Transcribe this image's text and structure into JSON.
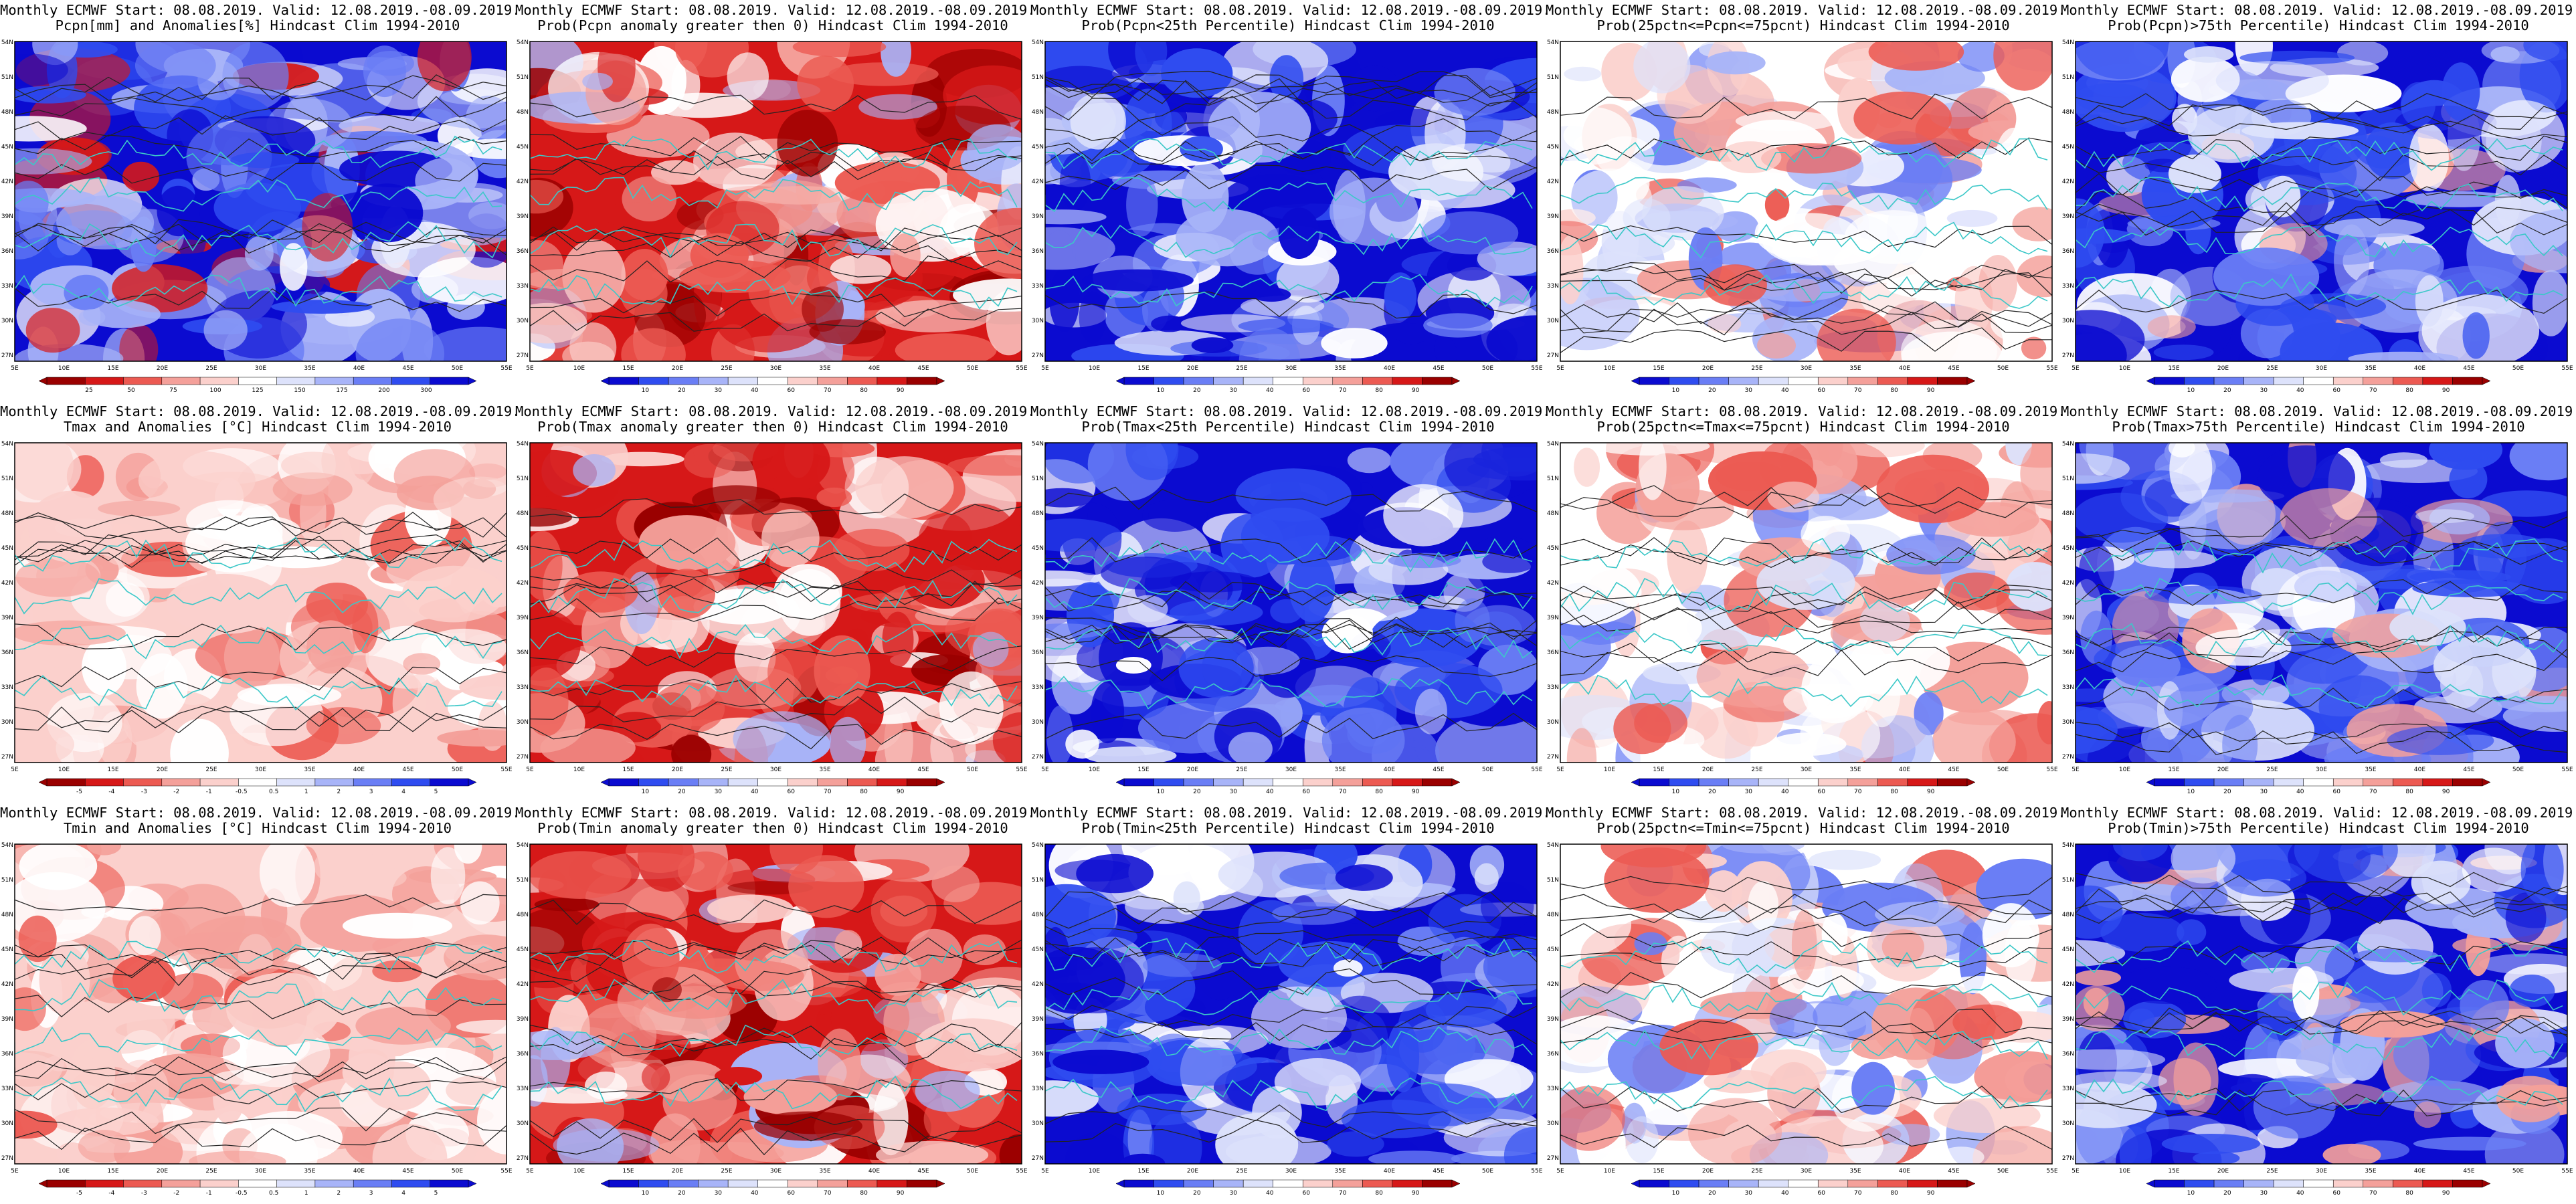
{
  "title_line1": "Monthly ECMWF Start: 08.08.2019. Valid: 12.08.2019.-08.09.2019.",
  "panels": [
    {
      "t2": "Pcpn[mm] and Anomalies[%] Hindcast Clim 1994-2010",
      "scheme": "anom",
      "ticks": [
        "25",
        "50",
        "75",
        "100",
        "125",
        "150",
        "175",
        "200",
        "300"
      ]
    },
    {
      "t2": "Prob(Pcpn anomaly greater then 0) Hindcast Clim 1994-2010",
      "scheme": "prob",
      "ticks": [
        "10",
        "20",
        "30",
        "40",
        "60",
        "70",
        "80",
        "90"
      ]
    },
    {
      "t2": "Prob(Pcpn<25th Percentile) Hindcast Clim 1994-2010",
      "scheme": "prob",
      "ticks": [
        "10",
        "20",
        "30",
        "40",
        "60",
        "70",
        "80",
        "90"
      ]
    },
    {
      "t2": "Prob(25pctn<=Pcpn<=75pcnt) Hindcast Clim 1994-2010",
      "scheme": "prob",
      "ticks": [
        "10",
        "20",
        "30",
        "40",
        "60",
        "70",
        "80",
        "90"
      ]
    },
    {
      "t2": "Prob(Pcpn)>75th Percentile) Hindcast Clim 1994-2010",
      "scheme": "prob",
      "ticks": [
        "10",
        "20",
        "30",
        "40",
        "60",
        "70",
        "80",
        "90"
      ]
    },
    {
      "t2": "Tmax and Anomalies [°C] Hindcast Clim 1994-2010",
      "scheme": "anom",
      "ticks": [
        "-5",
        "-4",
        "-3",
        "-2",
        "-1",
        "-0.5",
        "0.5",
        "1",
        "2",
        "3",
        "4",
        "5"
      ]
    },
    {
      "t2": "Prob(Tmax anomaly greater then 0) Hindcast Clim 1994-2010",
      "scheme": "prob",
      "ticks": [
        "10",
        "20",
        "30",
        "40",
        "60",
        "70",
        "80",
        "90"
      ]
    },
    {
      "t2": "Prob(Tmax<25th Percentile) Hindcast Clim 1994-2010",
      "scheme": "prob",
      "ticks": [
        "10",
        "20",
        "30",
        "40",
        "60",
        "70",
        "80",
        "90"
      ]
    },
    {
      "t2": "Prob(25pctn<=Tmax<=75pcnt) Hindcast Clim 1994-2010",
      "scheme": "prob",
      "ticks": [
        "10",
        "20",
        "30",
        "40",
        "60",
        "70",
        "80",
        "90"
      ]
    },
    {
      "t2": "Prob(Tmax>75th Percentile) Hindcast Clim 1994-2010",
      "scheme": "prob",
      "ticks": [
        "10",
        "20",
        "30",
        "40",
        "60",
        "70",
        "80",
        "90"
      ]
    },
    {
      "t2": "Tmin and Anomalies [°C] Hindcast Clim 1994-2010",
      "scheme": "anom",
      "ticks": [
        "-5",
        "-4",
        "-3",
        "-2",
        "-1",
        "-0.5",
        "0.5",
        "1",
        "2",
        "3",
        "4",
        "5"
      ]
    },
    {
      "t2": "Prob(Tmin anomaly greater then 0) Hindcast Clim 1994-2010",
      "scheme": "prob",
      "ticks": [
        "10",
        "20",
        "30",
        "40",
        "60",
        "70",
        "80",
        "90"
      ]
    },
    {
      "t2": "Prob(Tmin<25th Percentile) Hindcast Clim 1994-2010",
      "scheme": "prob",
      "ticks": [
        "10",
        "20",
        "30",
        "40",
        "60",
        "70",
        "80",
        "90"
      ]
    },
    {
      "t2": "Prob(25pctn<=Tmin<=75pcnt) Hindcast Clim 1994-2010",
      "scheme": "prob",
      "ticks": [
        "10",
        "20",
        "30",
        "40",
        "60",
        "70",
        "80",
        "90"
      ]
    },
    {
      "t2": "Prob(Tmin)>75th Percentile) Hindcast Clim 1994-2010",
      "scheme": "prob",
      "ticks": [
        "10",
        "20",
        "30",
        "40",
        "60",
        "70",
        "80",
        "90"
      ]
    }
  ],
  "lon_labels": [
    "5E",
    "10E",
    "15E",
    "20E",
    "25E",
    "30E",
    "35E",
    "40E",
    "45E",
    "50E",
    "55E"
  ],
  "lat_labels": [
    "27N",
    "30N",
    "33N",
    "36N",
    "39N",
    "42N",
    "45N",
    "48N",
    "51N",
    "54N"
  ],
  "colors": {
    "map_bg": "#ffffff",
    "coast": "#3cc8c8",
    "contour": "#222222",
    "cbar_prob": [
      "#0b0bd0",
      "#2f4cf0",
      "#6a7ef5",
      "#a8b4f8",
      "#dde2fb",
      "#ffffff",
      "#fbd0cc",
      "#f4a09a",
      "#ec5a52",
      "#d61818",
      "#9a0000"
    ],
    "cbar_anom": [
      "#9a0000",
      "#d61818",
      "#ec5a52",
      "#f4a09a",
      "#fbd0cc",
      "#ffffff",
      "#dde2fb",
      "#a8b4f8",
      "#6a7ef5",
      "#2f4cf0",
      "#0b0bd0"
    ]
  }
}
